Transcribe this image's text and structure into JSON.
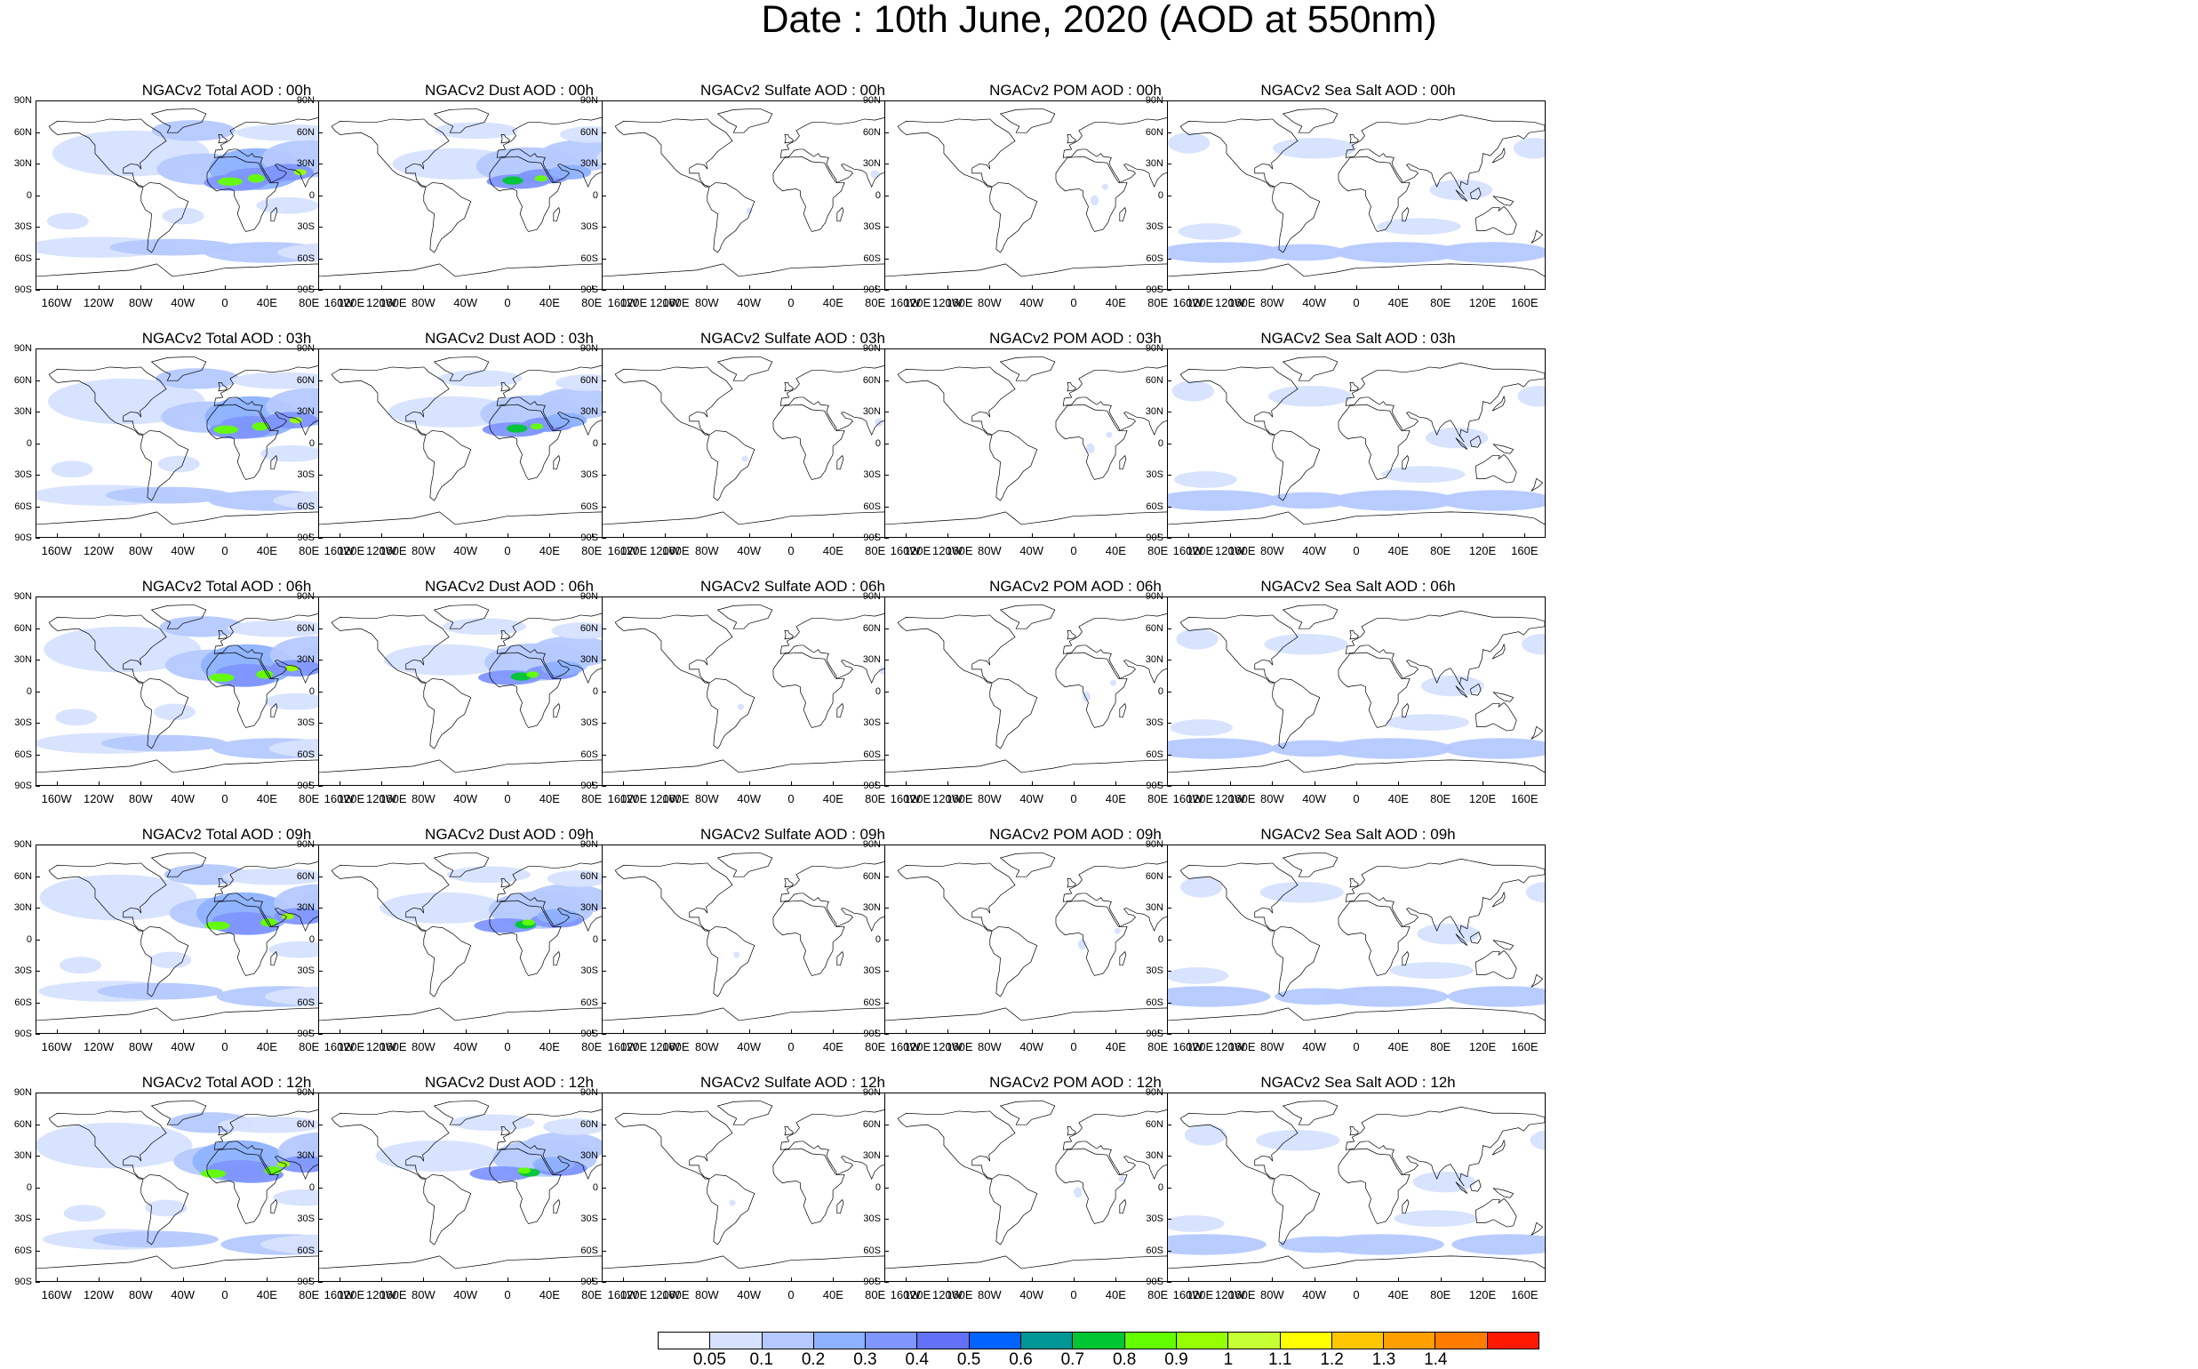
{
  "title": "Date : 10th June, 2020 (AOD at 550nm)",
  "panels": [
    [
      "NGACv2 Total AOD : 00h",
      "NGACv2 Dust AOD : 00h",
      "NGACv2 Sulfate AOD : 00h",
      "NGACv2 POM AOD : 00h",
      "NGACv2 Sea Salt AOD : 00h"
    ],
    [
      "NGACv2 Total AOD : 03h",
      "NGACv2 Dust AOD : 03h",
      "NGACv2 Sulfate AOD : 03h",
      "NGACv2 POM AOD : 03h",
      "NGACv2 Sea Salt AOD : 03h"
    ],
    [
      "NGACv2 Total AOD : 06h",
      "NGACv2 Dust AOD : 06h",
      "NGACv2 Sulfate AOD : 06h",
      "NGACv2 POM AOD : 06h",
      "NGACv2 Sea Salt AOD : 06h"
    ],
    [
      "NGACv2 Total AOD : 09h",
      "NGACv2 Dust AOD : 09h",
      "NGACv2 Sulfate AOD : 09h",
      "NGACv2 POM AOD : 09h",
      "NGACv2 Sea Salt  AOD : 09h"
    ],
    [
      "NGACv2 Total AOD : 12h",
      "NGACv2 Dust AOD : 12h",
      "NGACv2 Sulfate AOD : 12h",
      "NGACv2 POM  AOD : 12h",
      "NGACv2 Sea Salt  AOD : 12h"
    ]
  ],
  "lat_ticks": [
    "90N",
    "60N",
    "30N",
    "0",
    "30S",
    "60S",
    "90S"
  ],
  "lon_ticks": [
    "160W",
    "120W",
    "80W",
    "40W",
    "0",
    "40E",
    "80E",
    "120E",
    "160E"
  ],
  "colorbar": {
    "labels": [
      "0.05",
      "0.1",
      "0.2",
      "0.3",
      "0.4",
      "0.5",
      "0.6",
      "0.7",
      "0.8",
      "0.9",
      "1",
      "1.1",
      "1.2",
      "1.3",
      "1.4"
    ],
    "colors": [
      "#ffffff",
      "#d6e2ff",
      "#b5c9ff",
      "#8eb2ff",
      "#7f96ff",
      "#6370f8",
      "#0063ff",
      "#009696",
      "#00c633",
      "#63ff00",
      "#96ff00",
      "#c6ff33",
      "#ffff00",
      "#ffc600",
      "#ffa000",
      "#ff7c00",
      "#ff1900"
    ]
  },
  "species_colors": {
    "total": "#b5c9ff",
    "dust": "#b5c9ff",
    "sulfate": "#d6e2ff",
    "pom": "#d6e2ff",
    "seasalt": "#b5c9ff"
  }
}
